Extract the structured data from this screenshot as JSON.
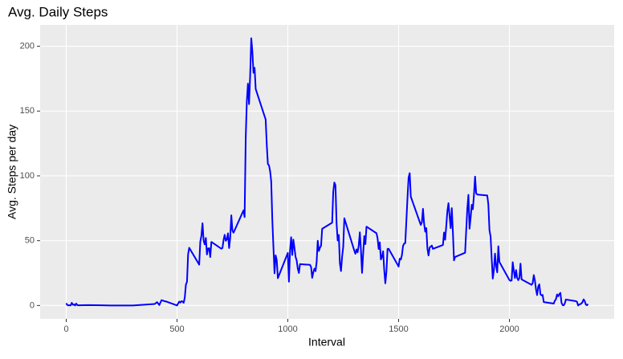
{
  "chart_data": {
    "type": "line",
    "title": "Avg. Daily Steps",
    "x_label": "Interval",
    "y_label": "Avg. Steps per day",
    "x": [
      0,
      5,
      10,
      15,
      20,
      25,
      30,
      35,
      40,
      45,
      50,
      55,
      100,
      200,
      300,
      400,
      410,
      420,
      430,
      440,
      450,
      500,
      505,
      510,
      515,
      520,
      525,
      530,
      535,
      540,
      545,
      550,
      555,
      600,
      605,
      610,
      615,
      620,
      625,
      630,
      635,
      640,
      645,
      650,
      655,
      700,
      705,
      710,
      715,
      720,
      725,
      730,
      735,
      740,
      745,
      750,
      755,
      800,
      805,
      810,
      815,
      820,
      825,
      830,
      835,
      840,
      845,
      850,
      855,
      900,
      905,
      910,
      915,
      920,
      925,
      930,
      935,
      940,
      945,
      950,
      955,
      1000,
      1005,
      1010,
      1015,
      1020,
      1025,
      1030,
      1035,
      1040,
      1045,
      1050,
      1055,
      1100,
      1105,
      1110,
      1115,
      1120,
      1125,
      1130,
      1135,
      1140,
      1145,
      1150,
      1155,
      1200,
      1205,
      1210,
      1215,
      1220,
      1225,
      1230,
      1235,
      1240,
      1245,
      1250,
      1255,
      1300,
      1305,
      1310,
      1315,
      1320,
      1325,
      1330,
      1335,
      1340,
      1345,
      1350,
      1355,
      1400,
      1405,
      1410,
      1415,
      1420,
      1425,
      1430,
      1435,
      1440,
      1445,
      1450,
      1455,
      1500,
      1505,
      1510,
      1515,
      1520,
      1525,
      1530,
      1535,
      1540,
      1545,
      1550,
      1555,
      1600,
      1605,
      1610,
      1615,
      1620,
      1625,
      1630,
      1635,
      1640,
      1645,
      1650,
      1655,
      1700,
      1705,
      1710,
      1715,
      1720,
      1725,
      1730,
      1735,
      1740,
      1745,
      1750,
      1755,
      1800,
      1805,
      1810,
      1815,
      1820,
      1825,
      1830,
      1835,
      1840,
      1845,
      1850,
      1855,
      1900,
      1905,
      1910,
      1915,
      1920,
      1925,
      1930,
      1935,
      1940,
      1945,
      1950,
      1955,
      2000,
      2005,
      2010,
      2015,
      2020,
      2025,
      2030,
      2035,
      2040,
      2045,
      2050,
      2055,
      2100,
      2105,
      2110,
      2115,
      2120,
      2125,
      2130,
      2135,
      2140,
      2145,
      2150,
      2155,
      2200,
      2205,
      2210,
      2215,
      2220,
      2225,
      2230,
      2235,
      2240,
      2245,
      2250,
      2255,
      2300,
      2305,
      2310,
      2315,
      2320,
      2325,
      2330,
      2335,
      2340,
      2345,
      2350,
      2355
    ],
    "series": [
      {
        "color": "blue",
        "values": [
          1.72,
          0.34,
          0.13,
          0.15,
          0.08,
          2.09,
          0.53,
          0.87,
          0,
          1.47,
          0.3,
          0.13,
          0.32,
          0,
          0,
          1.19,
          2.57,
          0.34,
          4.11,
          3.49,
          3.11,
          0,
          1.55,
          3.0,
          2.25,
          3.32,
          2.96,
          2.09,
          6.06,
          16.02,
          18.34,
          39.45,
          44.49,
          31.49,
          49.26,
          53.77,
          63.45,
          49.96,
          47.08,
          52.15,
          39.34,
          44.02,
          44.17,
          37.36,
          49.04,
          43.81,
          44.38,
          50.51,
          54.51,
          49.92,
          50.98,
          55.68,
          44.32,
          52.26,
          69.55,
          57.85,
          56.15,
          73.38,
          68.21,
          129.43,
          157.53,
          171.15,
          155.4,
          177.3,
          206.17,
          195.92,
          179.57,
          183.4,
          167.02,
          143.45,
          124.04,
          109.11,
          108.11,
          103.72,
          95.96,
          66.21,
          45.23,
          24.79,
          38.75,
          34.98,
          21.06,
          40.57,
          18.34,
          42.4,
          52.66,
          38.92,
          50.79,
          44.28,
          37.42,
          34.7,
          28.34,
          25.09,
          31.94,
          31.36,
          29.68,
          21.32,
          25.55,
          28.38,
          26.47,
          33.43,
          49.98,
          42.04,
          44.6,
          46.04,
          59.19,
          63.87,
          87.7,
          94.85,
          92.77,
          63.4,
          50.17,
          54.47,
          32.42,
          26.53,
          37.74,
          45.06,
          67.28,
          42.34,
          39.88,
          43.26,
          40.98,
          46.25,
          56.43,
          42.75,
          25.13,
          39.96,
          53.55,
          47.32,
          60.81,
          55.75,
          51.96,
          43.58,
          48.7,
          35.47,
          37.55,
          41.85,
          27.51,
          17.11,
          26.08,
          43.62,
          43.77,
          30.02,
          36.08,
          35.49,
          38.85,
          45.96,
          47.75,
          48.13,
          65.32,
          82.91,
          98.66,
          102.11,
          83.96,
          62.13,
          64.13,
          74.55,
          63.17,
          56.91,
          59.77,
          43.87,
          38.57,
          44.66,
          45.45,
          46.21,
          43.68,
          46.62,
          56.3,
          50.72,
          61.23,
          72.72,
          78.94,
          68.94,
          59.66,
          75.09,
          56.51,
          34.77,
          37.45,
          40.68,
          58.02,
          74.7,
          85.32,
          59.26,
          67.77,
          77.7,
          74.25,
          85.34,
          99.45,
          86.58,
          85.6,
          84.87,
          77.83,
          58.04,
          53.36,
          36.32,
          20.72,
          27.4,
          40.02,
          30.21,
          25.55,
          45.66,
          33.53,
          19.62,
          19.02,
          19.34,
          33.34,
          26.81,
          21.17,
          27.3,
          21.34,
          19.55,
          21.32,
          32.3,
          20.15,
          15.94,
          17.23,
          23.45,
          19.25,
          12.45,
          8.02,
          14.66,
          16.3,
          8.68,
          7.79,
          8.13,
          2.62,
          1.45,
          3.68,
          4.81,
          8.51,
          7.08,
          8.7,
          9.75,
          2.21,
          0.32,
          0.11,
          1.6,
          4.6,
          3.3,
          2.85,
          0,
          0.83,
          0.96,
          1.58,
          2.6,
          4.7,
          3.3,
          0.64,
          0.23,
          1.08
        ]
      }
    ],
    "xlim": [
      -117.75,
      2472.75
    ],
    "ylim": [
      -10.31,
      216.48
    ],
    "xticks": [
      0,
      500,
      1000,
      1500,
      2000
    ],
    "yticks": [
      0,
      50,
      100,
      150,
      200
    ],
    "grid": true
  }
}
